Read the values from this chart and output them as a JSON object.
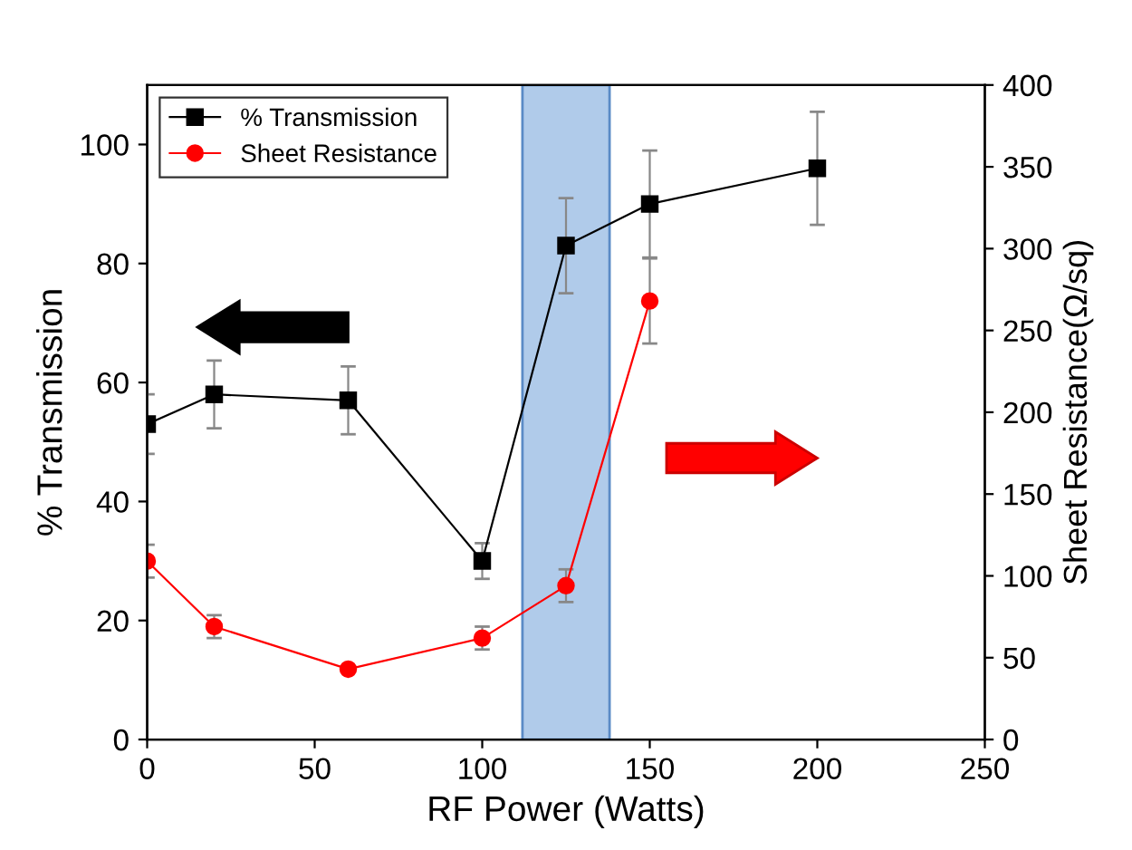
{
  "chart_data": {
    "type": "line",
    "xlabel": "RF Power (Watts)",
    "ylabel": "% Transmission",
    "y2label": "Sheet Resistance(Ω/sq)",
    "xlim": [
      0,
      250
    ],
    "xticks": [
      0,
      50,
      100,
      150,
      200,
      250
    ],
    "ylim": [
      0,
      110
    ],
    "yticks": [
      0,
      20,
      40,
      60,
      80,
      100
    ],
    "y2lim": [
      0,
      400
    ],
    "y2ticks": [
      0,
      50,
      100,
      150,
      200,
      250,
      300,
      350,
      400
    ],
    "series": [
      {
        "name": "% Transmission",
        "color": "#000000",
        "marker": "square",
        "x": [
          0,
          20,
          60,
          100,
          125,
          150,
          200
        ],
        "values": [
          53,
          58,
          57,
          30,
          83,
          90,
          96
        ],
        "errors": [
          5,
          5.7,
          5.7,
          3,
          8,
          9,
          9.5
        ]
      },
      {
        "name": "Sheet Resistance",
        "color": "#ff0000",
        "marker": "circle",
        "axis": "y2",
        "x": [
          0,
          20,
          60,
          100,
          125,
          150
        ],
        "values": [
          109,
          69,
          43,
          62,
          94,
          268
        ],
        "errors": [
          10,
          7,
          null,
          7,
          10,
          26
        ]
      }
    ],
    "bands": [
      {
        "axis": "x",
        "from": 112,
        "to": 138,
        "color": "#a8c6e8"
      }
    ],
    "legend": "top left",
    "grid": false
  }
}
